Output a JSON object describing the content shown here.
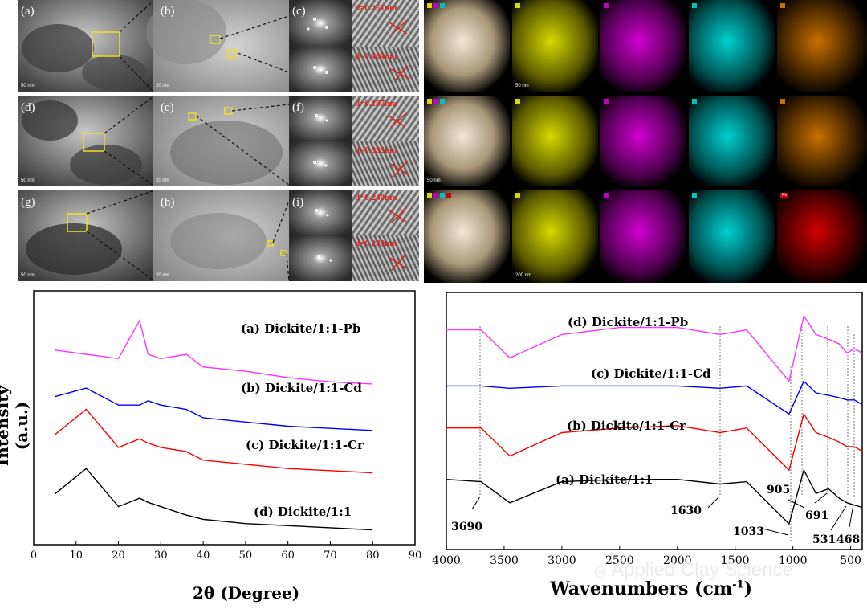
{
  "tem": {
    "row_labels": [
      [
        "(a)",
        "(b)",
        "(c)"
      ],
      [
        "(d)",
        "(e)",
        "(f)"
      ],
      [
        "(g)",
        "(h)",
        "(i)"
      ]
    ],
    "dspacings": [
      "d=0.251nm",
      "d=0.404nm",
      "d=0.187nm",
      "d=0.335nm",
      "d=0.240nm",
      "d=0.239nm"
    ],
    "scale_a": "50 nm",
    "scale_b": "20 nm",
    "scale_d": "50 nm",
    "scale_e": "20 nm",
    "scale_g": "50 nm",
    "scale_h": "20 nm"
  },
  "edx": {
    "colors": [
      "#b8b800",
      "#c000c0",
      "#00b8c0"
    ],
    "heavy_colors": [
      "#c87000",
      "#c87000",
      "#c00000"
    ],
    "tag_heavy_row3": "Pb",
    "scale_row1": "50 nm",
    "scale_row2": "50 nm",
    "scale_row3": "200 nm"
  },
  "xrd": {
    "ylabel": "Intensity (a.u.)",
    "xlabel": "2θ (Degree)",
    "xticks": [
      "0",
      "10",
      "20",
      "30",
      "40",
      "50",
      "60",
      "70",
      "80",
      "90"
    ],
    "legend": [
      "(a) Dickite/1:1-Pb",
      "(b) Dickite/1:1-Cd",
      "(c) Dickite/1:1-Cr",
      "(d) Dickite/1:1"
    ],
    "colors": [
      "#ff33ff",
      "#0000ff",
      "#ff0000",
      "#000000"
    ]
  },
  "ftir": {
    "xlabel": "Wavenumbers (cm",
    "xlabel_sup": "-1",
    "xlabel_close": ")",
    "xticks": [
      "4000",
      "3500",
      "3000",
      "2500",
      "2000",
      "1500",
      "1000",
      "500"
    ],
    "legend": [
      "(d) Dickite/1:1-Pb",
      "(c) Dickite/1:1-Cd",
      "(b) Dickite/1:1-Cr",
      "(a) Dickite/1:1"
    ],
    "colors": [
      "#ff33ff",
      "#0000ff",
      "#ff0000",
      "#000000"
    ],
    "peaks": [
      "3690",
      "1630",
      "905",
      "691",
      "1033",
      "531",
      "468"
    ]
  },
  "watermark": "Applied Clay Science",
  "chart_data": [
    {
      "type": "line",
      "xlabel": "2θ (Degree)",
      "ylabel": "Intensity (a.u.)",
      "xlim": [
        0,
        90
      ],
      "series": [
        {
          "name": "(a) Dickite/1:1-Pb",
          "x": [
            5,
            12.4,
            20,
            25,
            27,
            30,
            36,
            40,
            50,
            60,
            70,
            80
          ],
          "values": [
            4.6,
            4.5,
            4.4,
            5.3,
            4.5,
            4.4,
            4.5,
            4.2,
            4.1,
            3.95,
            3.85,
            3.8
          ]
        },
        {
          "name": "(b) Dickite/1:1-Cd",
          "x": [
            5,
            12.4,
            20,
            25,
            27,
            30,
            36,
            40,
            50,
            60,
            70,
            80
          ],
          "values": [
            3.5,
            3.7,
            3.3,
            3.3,
            3.4,
            3.3,
            3.2,
            3.0,
            2.9,
            2.8,
            2.75,
            2.7
          ]
        },
        {
          "name": "(c) Dickite/1:1-Cr",
          "x": [
            5,
            12.4,
            20,
            25,
            27,
            30,
            36,
            40,
            50,
            60,
            70,
            80
          ],
          "values": [
            2.6,
            3.2,
            2.3,
            2.5,
            2.4,
            2.3,
            2.2,
            2.0,
            1.9,
            1.8,
            1.75,
            1.7
          ]
        },
        {
          "name": "(d) Dickite/1:1",
          "x": [
            5,
            12.4,
            20,
            25,
            27,
            30,
            36,
            40,
            50,
            60,
            70,
            80
          ],
          "values": [
            1.2,
            1.8,
            0.9,
            1.1,
            1.0,
            0.9,
            0.7,
            0.6,
            0.5,
            0.45,
            0.4,
            0.35
          ]
        }
      ]
    },
    {
      "type": "line",
      "xlabel": "Wavenumbers (cm-1)",
      "xlim": [
        4000,
        400
      ],
      "series": [
        {
          "name": "(d) Dickite/1:1-Pb",
          "x": [
            4000,
            3700,
            3450,
            3000,
            2500,
            2000,
            1630,
            1400,
            1033,
            905,
            800,
            691,
            600,
            531,
            468,
            400
          ],
          "values": [
            4.2,
            4.2,
            3.6,
            4.1,
            4.25,
            4.25,
            4.1,
            4.2,
            3.1,
            4.5,
            4.1,
            4.0,
            3.9,
            3.7,
            3.8,
            3.7
          ]
        },
        {
          "name": "(c) Dickite/1:1-Cd",
          "x": [
            4000,
            3700,
            3450,
            3000,
            2500,
            2000,
            1630,
            1400,
            1033,
            905,
            800,
            691,
            600,
            531,
            468,
            400
          ],
          "values": [
            3.0,
            3.0,
            2.95,
            3.0,
            3.0,
            3.0,
            2.95,
            3.0,
            2.4,
            3.1,
            2.85,
            2.8,
            2.75,
            2.7,
            2.7,
            2.6
          ]
        },
        {
          "name": "(b) Dickite/1:1-Cr",
          "x": [
            4000,
            3700,
            3450,
            3000,
            2500,
            2000,
            1630,
            1400,
            1033,
            905,
            800,
            691,
            600,
            531,
            468,
            400
          ],
          "values": [
            2.1,
            2.1,
            1.5,
            2.0,
            2.1,
            2.15,
            2.0,
            2.1,
            1.2,
            2.4,
            2.0,
            1.9,
            1.8,
            1.7,
            1.7,
            1.6
          ]
        },
        {
          "name": "(a) Dickite/1:1",
          "x": [
            4000,
            3700,
            3450,
            3000,
            2500,
            2000,
            1630,
            1400,
            1033,
            905,
            800,
            691,
            600,
            531,
            468,
            400
          ],
          "values": [
            1.0,
            0.95,
            0.5,
            0.95,
            1.0,
            1.0,
            0.9,
            0.95,
            0.05,
            1.2,
            0.7,
            0.8,
            0.6,
            0.5,
            0.45,
            0.4
          ]
        }
      ]
    }
  ]
}
